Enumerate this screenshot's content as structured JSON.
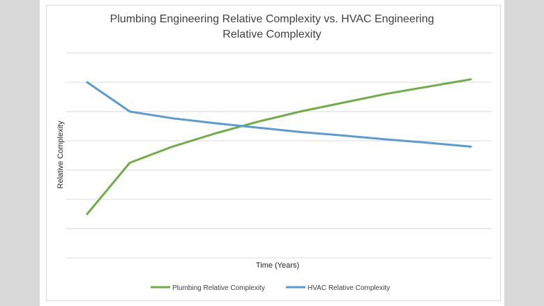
{
  "chart_data": {
    "type": "line",
    "title_line1": "Plumbing Engineering Relative Complexity vs. HVAC Engineering",
    "title_line2": "Relative Complexity",
    "xlabel": "Time (Years)",
    "ylabel": "Relative Complexity",
    "x": [
      1,
      2,
      3,
      4,
      5,
      6,
      7,
      8,
      9,
      10
    ],
    "series": [
      {
        "name": "Plumbing Relative Complexity",
        "color": "#70ad47",
        "values": [
          1.5,
          3.25,
          3.8,
          4.25,
          4.65,
          5.0,
          5.3,
          5.6,
          5.85,
          6.1
        ]
      },
      {
        "name": "HVAC Relative Complexity",
        "color": "#5b9bd5",
        "values": [
          6.0,
          5.0,
          4.77,
          4.6,
          4.45,
          4.3,
          4.18,
          4.05,
          3.93,
          3.8
        ]
      }
    ],
    "ylim": [
      0,
      7
    ],
    "grid": true,
    "legend_position": "bottom",
    "tick_labels_shown": false
  }
}
